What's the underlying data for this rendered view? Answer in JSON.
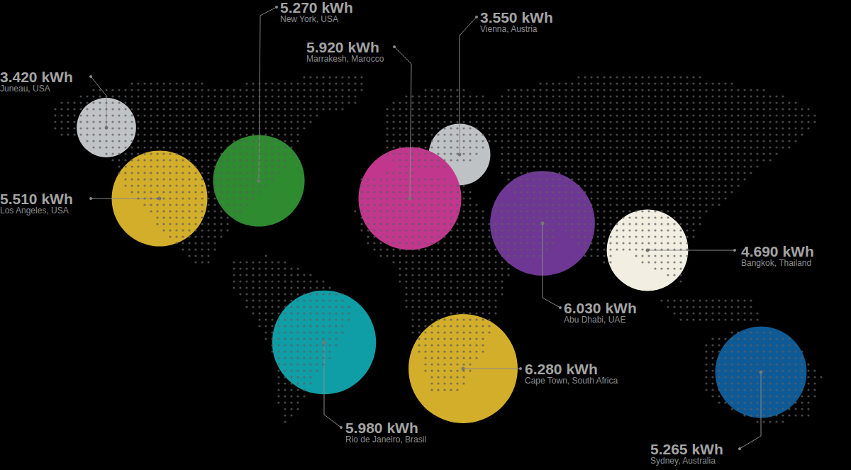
{
  "chart_data": {
    "type": "bubble",
    "tick_labels": false,
    "categories": [
      "Juneau, USA",
      "New York, USA",
      "Los Angeles, USA",
      "Vienna, Austria",
      "Marrakesh, Marocco",
      "Abu Dhabi, UAE",
      "Bangkok, Thailand",
      "Rio de Janeiro, Brasil",
      "Cape Town, South Africa",
      "Sydney, Australia"
    ],
    "values": [
      3420,
      5270,
      5510,
      3550,
      5920,
      6030,
      4690,
      5980,
      6280,
      5265
    ],
    "value_labels": [
      "3.420 kWh",
      "5.270 kWh",
      "5.510 kWh",
      "3.550 kWh",
      "5.920 kWh",
      "6.030 kWh",
      "4.690 kWh",
      "5.980 kWh",
      "6.280 kWh",
      "5.265 kWh"
    ],
    "colors": [
      "#c0c3c6",
      "#2e8b30",
      "#d3ae2a",
      "#bfc2c5",
      "#c2378e",
      "#6e3794",
      "#f2eee2",
      "#0f9ea6",
      "#d3ae2a",
      "#0e5a96"
    ]
  }
}
